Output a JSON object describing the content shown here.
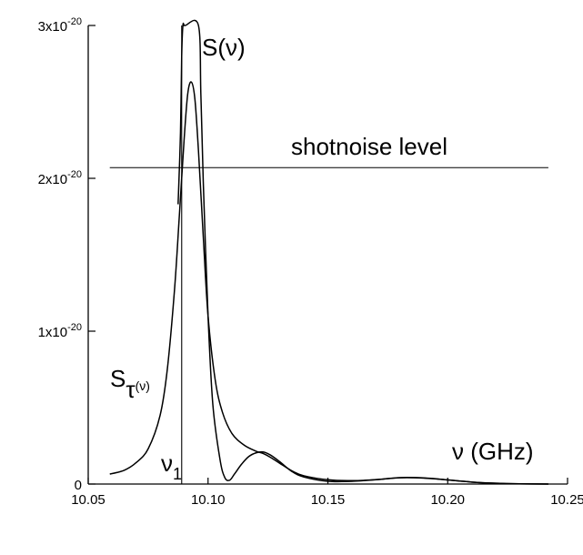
{
  "chart_data": {
    "type": "line",
    "title": "",
    "xlabel": "ν (GHz)",
    "ylabel": "",
    "xlim": [
      10.05,
      10.25
    ],
    "ylim": [
      0,
      3e-20
    ],
    "grid": false,
    "x_ticks": [
      {
        "value": 10.05,
        "label": "10.05"
      },
      {
        "value": 10.1,
        "label": "10.10"
      },
      {
        "value": 10.15,
        "label": "10.15"
      },
      {
        "value": 10.2,
        "label": "10.20"
      },
      {
        "value": 10.25,
        "label": "10.25"
      }
    ],
    "y_ticks": [
      {
        "value": 0,
        "mantissa": "0",
        "exponent": ""
      },
      {
        "value": 1e-20,
        "mantissa": "1x10",
        "exponent": "-20"
      },
      {
        "value": 2e-20,
        "mantissa": "2x10",
        "exponent": "-20"
      },
      {
        "value": 3e-20,
        "mantissa": "3x10",
        "exponent": "-20"
      }
    ],
    "series": [
      {
        "name": "S(ν)",
        "label_main": "S",
        "label_arg": "(ν)",
        "x": [
          10.0875,
          10.0885,
          10.089,
          10.0895,
          10.09,
          10.0905,
          10.096,
          10.097,
          10.098,
          10.1,
          10.102,
          10.105,
          10.107,
          10.109,
          10.111,
          10.114,
          10.117,
          10.12,
          10.123,
          10.126,
          10.13,
          10.135,
          10.14,
          10.15,
          10.16,
          10.17,
          10.18,
          10.19,
          10.2,
          10.21,
          10.22,
          10.23,
          10.242
        ],
        "y": [
          1.83e-20,
          2.3e-20,
          2.8e-20,
          3e-20,
          3e-20,
          3e-20,
          3e-20,
          2.55e-20,
          1.98e-20,
          1.1e-20,
          5.2e-21,
          1.6e-21,
          4.2e-22,
          2.5e-22,
          6.5e-22,
          1.3e-21,
          1.8e-21,
          2.04e-21,
          2.1e-21,
          1.9e-21,
          1.45e-21,
          8.2e-22,
          4.6e-22,
          1.8e-22,
          1.8e-22,
          2.8e-22,
          4.2e-22,
          4e-22,
          2.7e-22,
          1.3e-22,
          5e-23,
          1.5e-23,
          0
        ]
      },
      {
        "name": "Sτ(ν)",
        "label_main": "S",
        "label_sub": "τ",
        "label_arg": "(ν)",
        "x": [
          10.059,
          10.065,
          10.07,
          10.075,
          10.08,
          10.083,
          10.086,
          10.088,
          10.09,
          10.0915,
          10.093,
          10.0945,
          10.096,
          10.098,
          10.1,
          10.103,
          10.106,
          10.11,
          10.115,
          10.12,
          10.123,
          10.126,
          10.13,
          10.135,
          10.14,
          10.15,
          10.16,
          10.17,
          10.18,
          10.19,
          10.2,
          10.21,
          10.22,
          10.23,
          10.242
        ],
        "y": [
          6.5e-22,
          9e-22,
          1.4e-21,
          2.3e-21,
          4.5e-21,
          7.5e-21,
          1.27e-20,
          1.75e-20,
          2.25e-20,
          2.55e-20,
          2.63e-20,
          2.52e-20,
          2.18e-20,
          1.62e-20,
          1.1e-20,
          6.8e-21,
          4.7e-21,
          3.3e-21,
          2.55e-21,
          2.15e-21,
          2e-21,
          1.75e-21,
          1.35e-21,
          8.6e-22,
          5.4e-22,
          2.8e-22,
          2.2e-22,
          2.9e-22,
          4.1e-22,
          3.9e-22,
          2.7e-22,
          1.3e-22,
          5e-23,
          1.5e-23,
          0
        ]
      }
    ],
    "reference_lines": [
      {
        "name": "shotnoise level",
        "orientation": "horizontal",
        "y": 2.07e-20,
        "x_range": [
          10.059,
          10.242
        ]
      },
      {
        "name": "ν1",
        "orientation": "vertical",
        "x": 10.089,
        "label_main": "ν",
        "label_sub": "1"
      }
    ],
    "annotations": {
      "shotnoise": "shotnoise level",
      "x_axis_label": "ν (GHz)"
    }
  }
}
